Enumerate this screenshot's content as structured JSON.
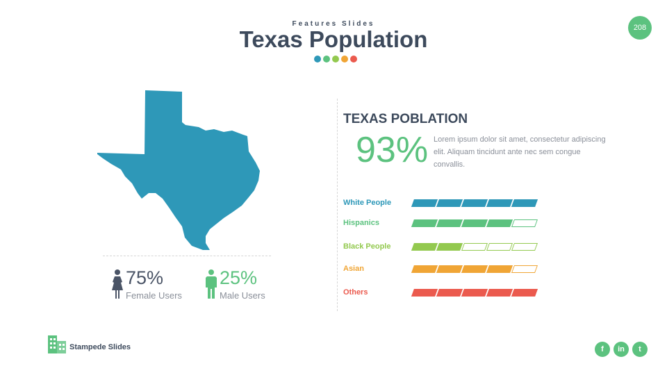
{
  "header": {
    "subtitle": "Features Slides",
    "title": "Texas Population",
    "dot_colors": [
      "#2e98b8",
      "#5cc27f",
      "#93c94f",
      "#f0a535",
      "#eb5a4e"
    ],
    "page_number": "208",
    "page_badge_color": "#5cc27f"
  },
  "map": {
    "icon": "texas-map-icon",
    "color": "#2e98b8"
  },
  "gender": {
    "female": {
      "percent": "75%",
      "label": "Female Users",
      "icon": "female-user-icon",
      "color": "#4a5466"
    },
    "male": {
      "percent": "25%",
      "label": "Male Users",
      "icon": "male-user-icon",
      "color": "#5cc27f"
    }
  },
  "stats": {
    "title": "TEXAS POBLATION",
    "percent": "93%",
    "description": "Lorem ipsum dolor sit amet, consectetur adipiscing elit. Aliquam tincidunt ante nec sem congue convallis."
  },
  "bars": [
    {
      "label": "White People",
      "filled": 5,
      "total": 5,
      "color": "#2e98b8"
    },
    {
      "label": "Hispanics",
      "filled": 4,
      "total": 5,
      "color": "#5cc27f"
    },
    {
      "label": "Black People",
      "filled": 2,
      "total": 5,
      "color": "#93c94f"
    },
    {
      "label": "Asian",
      "filled": 4,
      "total": 5,
      "color": "#f0a535"
    },
    {
      "label": "Others",
      "filled": 5,
      "total": 5,
      "color": "#eb5a4e"
    }
  ],
  "footer": {
    "brand": "Stampede Slides",
    "brand_icon": "building-icon",
    "brand_color": "#5cc27f",
    "social": [
      {
        "icon": "facebook-icon",
        "glyph": "f"
      },
      {
        "icon": "linkedin-icon",
        "glyph": "in"
      },
      {
        "icon": "twitter-icon",
        "glyph": "t"
      }
    ],
    "social_color": "#5cc27f"
  }
}
